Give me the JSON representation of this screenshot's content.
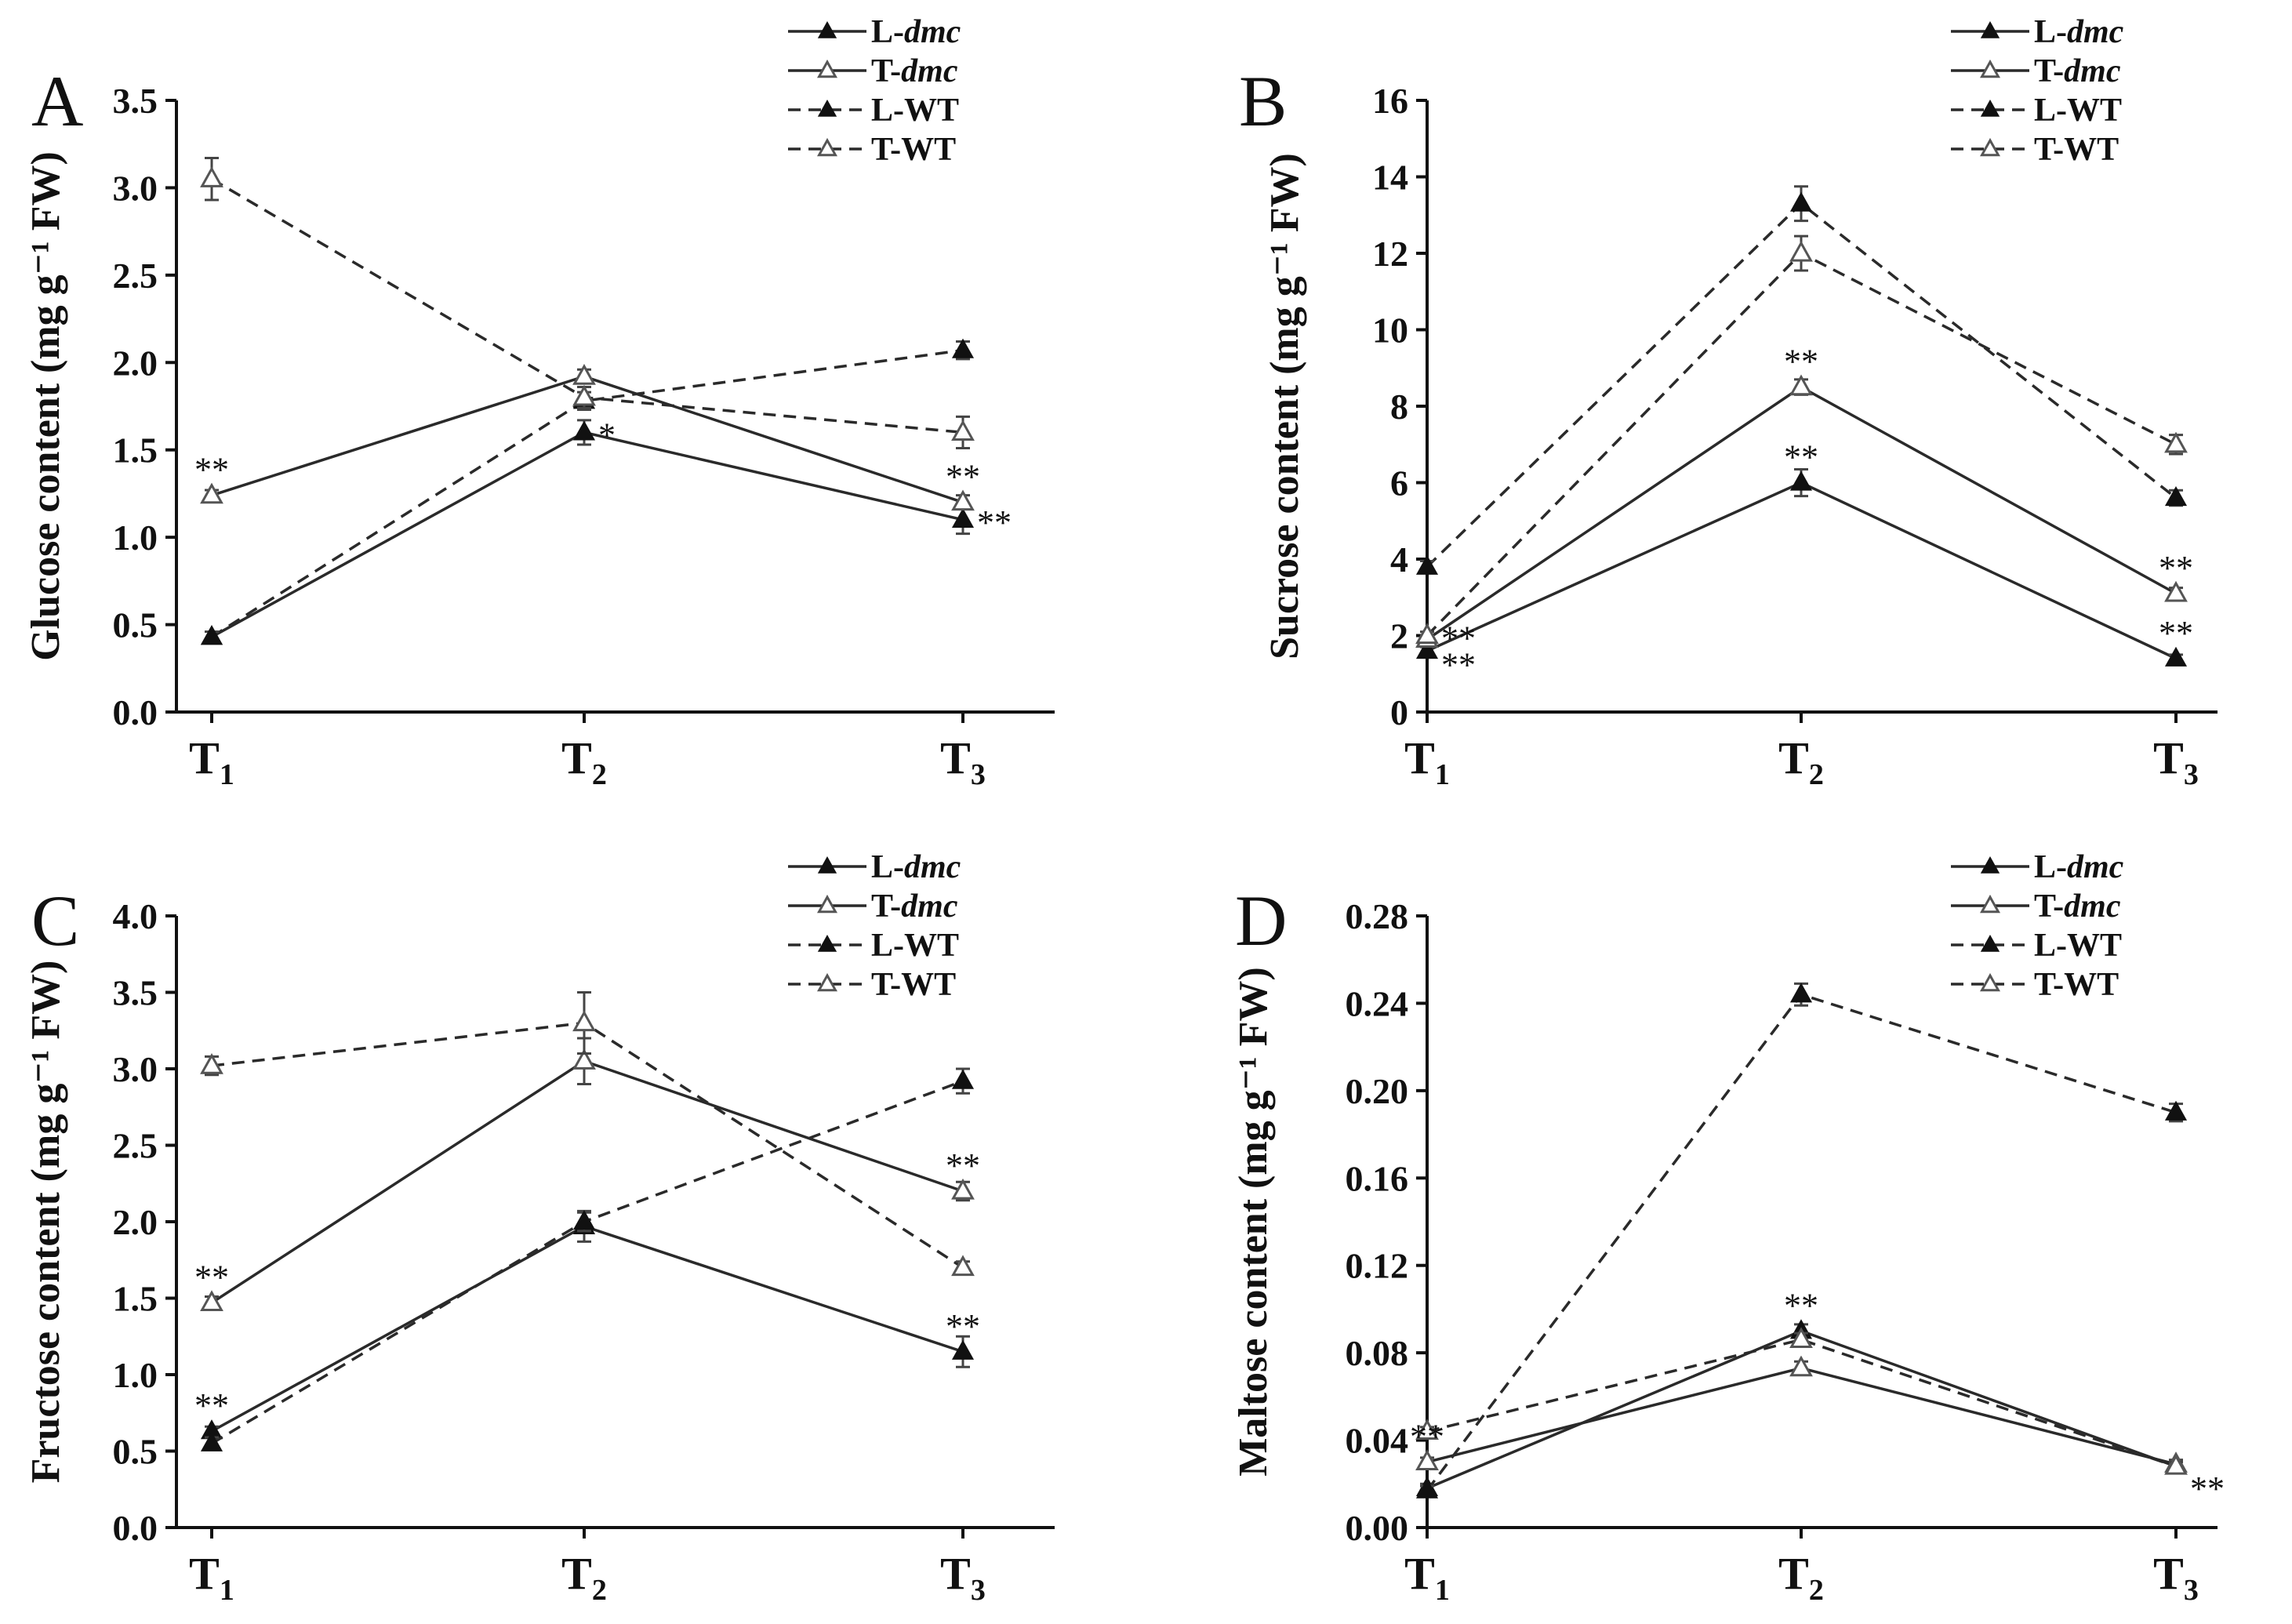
{
  "figure": {
    "legend_entries": [
      {
        "prefix": "L-",
        "suffix": "dmc",
        "italic": true,
        "filled": true,
        "dashed": false
      },
      {
        "prefix": "T-",
        "suffix": "dmc",
        "italic": true,
        "filled": false,
        "dashed": false
      },
      {
        "prefix": "L-",
        "suffix": "WT",
        "italic": false,
        "filled": true,
        "dashed": true
      },
      {
        "prefix": "T-",
        "suffix": "WT",
        "italic": false,
        "filled": false,
        "dashed": true
      }
    ],
    "colors": {
      "line": "#2a2a2a",
      "filled_marker": "#111111",
      "open_marker_stroke": "#555555"
    }
  },
  "chart_data": [
    {
      "panel": "A",
      "type": "line",
      "categories": [
        {
          "base": "T",
          "sub": "1"
        },
        {
          "base": "T",
          "sub": "2"
        },
        {
          "base": "T",
          "sub": "3"
        }
      ],
      "ylabel": "Glucose  content  (mg g⁻¹ FW)",
      "ylim": [
        0,
        3.5
      ],
      "yticks": [
        "0.0",
        "0.5",
        "1.0",
        "1.5",
        "2.0",
        "2.5",
        "3.0",
        "3.5"
      ],
      "legend_position": "top-right",
      "series": [
        {
          "name": "L-dmc",
          "values": [
            0.43,
            1.6,
            1.1
          ],
          "errors": [
            0.03,
            0.07,
            0.08
          ]
        },
        {
          "name": "T-dmc",
          "values": [
            1.24,
            1.92,
            1.2
          ],
          "errors": [
            0.03,
            0.04,
            0.04
          ]
        },
        {
          "name": "L-WT",
          "values": [
            0.43,
            1.78,
            2.07
          ],
          "errors": [
            0.03,
            0.05,
            0.05
          ]
        },
        {
          "name": "T-WT",
          "values": [
            3.05,
            1.8,
            1.6
          ],
          "errors": [
            0.12,
            0.06,
            0.09
          ]
        }
      ],
      "annotations": [
        {
          "text": "**",
          "cat": 0,
          "value": 1.24,
          "anchor": "above"
        },
        {
          "text": "*",
          "cat": 1,
          "value": 1.6,
          "anchor": "right"
        },
        {
          "text": "**",
          "cat": 2,
          "value": 1.2,
          "anchor": "above"
        },
        {
          "text": "**",
          "cat": 2,
          "value": 1.1,
          "anchor": "right"
        }
      ]
    },
    {
      "panel": "B",
      "type": "line",
      "categories": [
        {
          "base": "T",
          "sub": "1"
        },
        {
          "base": "T",
          "sub": "2"
        },
        {
          "base": "T",
          "sub": "3"
        }
      ],
      "ylabel": "Sucrose  content  (mg g⁻¹ FW)",
      "ylim": [
        0,
        16
      ],
      "yticks": [
        "0",
        "2",
        "4",
        "6",
        "8",
        "10",
        "12",
        "14",
        "16"
      ],
      "legend_position": "top-right",
      "series": [
        {
          "name": "L-dmc",
          "values": [
            1.6,
            6.0,
            1.4
          ],
          "errors": [
            0.1,
            0.35,
            0.1
          ]
        },
        {
          "name": "T-dmc",
          "values": [
            1.9,
            8.5,
            3.1
          ],
          "errors": [
            0.1,
            0.2,
            0.15
          ]
        },
        {
          "name": "L-WT",
          "values": [
            3.8,
            13.3,
            5.6
          ],
          "errors": [
            0.15,
            0.45,
            0.2
          ]
        },
        {
          "name": "T-WT",
          "values": [
            2.0,
            12.0,
            7.0
          ],
          "errors": [
            0.1,
            0.45,
            0.25
          ]
        }
      ],
      "annotations": [
        {
          "text": "**",
          "cat": 0,
          "value": 2.0,
          "anchor": "right"
        },
        {
          "text": "**",
          "cat": 0,
          "value": 1.3,
          "anchor": "right"
        },
        {
          "text": "**",
          "cat": 1,
          "value": 8.5,
          "anchor": "above"
        },
        {
          "text": "**",
          "cat": 1,
          "value": 6.0,
          "anchor": "above"
        },
        {
          "text": "**",
          "cat": 2,
          "value": 3.1,
          "anchor": "above"
        },
        {
          "text": "**",
          "cat": 2,
          "value": 1.4,
          "anchor": "above"
        }
      ]
    },
    {
      "panel": "C",
      "type": "line",
      "categories": [
        {
          "base": "T",
          "sub": "1"
        },
        {
          "base": "T",
          "sub": "2"
        },
        {
          "base": "T",
          "sub": "3"
        }
      ],
      "ylabel": "Fructose content  (mg g⁻¹ FW)",
      "ylim": [
        0,
        4
      ],
      "yticks": [
        "0.0",
        "0.5",
        "1.0",
        "1.5",
        "2.0",
        "2.5",
        "3.0",
        "3.5",
        "4.0"
      ],
      "legend_position": "top-right",
      "series": [
        {
          "name": "L-dmc",
          "values": [
            0.63,
            1.97,
            1.15
          ],
          "errors": [
            0.03,
            0.1,
            0.1
          ]
        },
        {
          "name": "T-dmc",
          "values": [
            1.47,
            3.05,
            2.2
          ],
          "errors": [
            0.04,
            0.15,
            0.06
          ]
        },
        {
          "name": "L-WT",
          "values": [
            0.55,
            2.0,
            2.92
          ],
          "errors": [
            0.04,
            0.06,
            0.08
          ]
        },
        {
          "name": "T-WT",
          "values": [
            3.02,
            3.3,
            1.7
          ],
          "errors": [
            0.06,
            0.2,
            0.04
          ]
        }
      ],
      "annotations": [
        {
          "text": "**",
          "cat": 0,
          "value": 1.47,
          "anchor": "above"
        },
        {
          "text": "**",
          "cat": 0,
          "value": 0.63,
          "anchor": "above"
        },
        {
          "text": "**",
          "cat": 2,
          "value": 2.2,
          "anchor": "above"
        },
        {
          "text": "**",
          "cat": 2,
          "value": 1.15,
          "anchor": "above"
        }
      ]
    },
    {
      "panel": "D",
      "type": "line",
      "categories": [
        {
          "base": "T",
          "sub": "1"
        },
        {
          "base": "T",
          "sub": "2"
        },
        {
          "base": "T",
          "sub": "3"
        }
      ],
      "ylabel": "Maltose content  (mg g⁻¹ FW)",
      "ylim": [
        0,
        0.28
      ],
      "yticks": [
        "0.00",
        "0.04",
        "0.08",
        "0.12",
        "0.16",
        "0.20",
        "0.24",
        "0.28"
      ],
      "legend_position": "top-right",
      "series": [
        {
          "name": "L-dmc",
          "values": [
            0.018,
            0.09,
            0.028
          ],
          "errors": [
            0.002,
            0.003,
            0.002
          ]
        },
        {
          "name": "T-dmc",
          "values": [
            0.03,
            0.073,
            0.029
          ],
          "errors": [
            0.002,
            0.003,
            0.002
          ]
        },
        {
          "name": "L-WT",
          "values": [
            0.017,
            0.244,
            0.19
          ],
          "errors": [
            0.002,
            0.005,
            0.004
          ]
        },
        {
          "name": "T-WT",
          "values": [
            0.044,
            0.086,
            0.028
          ],
          "errors": [
            0.002,
            0.003,
            0.002
          ]
        }
      ],
      "annotations": [
        {
          "text": "**",
          "cat": 0,
          "value": 0.03,
          "anchor": "above"
        },
        {
          "text": "**",
          "cat": 1,
          "value": 0.09,
          "anchor": "above"
        },
        {
          "text": "**",
          "cat": 2,
          "value": 0.019,
          "anchor": "right"
        }
      ]
    }
  ]
}
